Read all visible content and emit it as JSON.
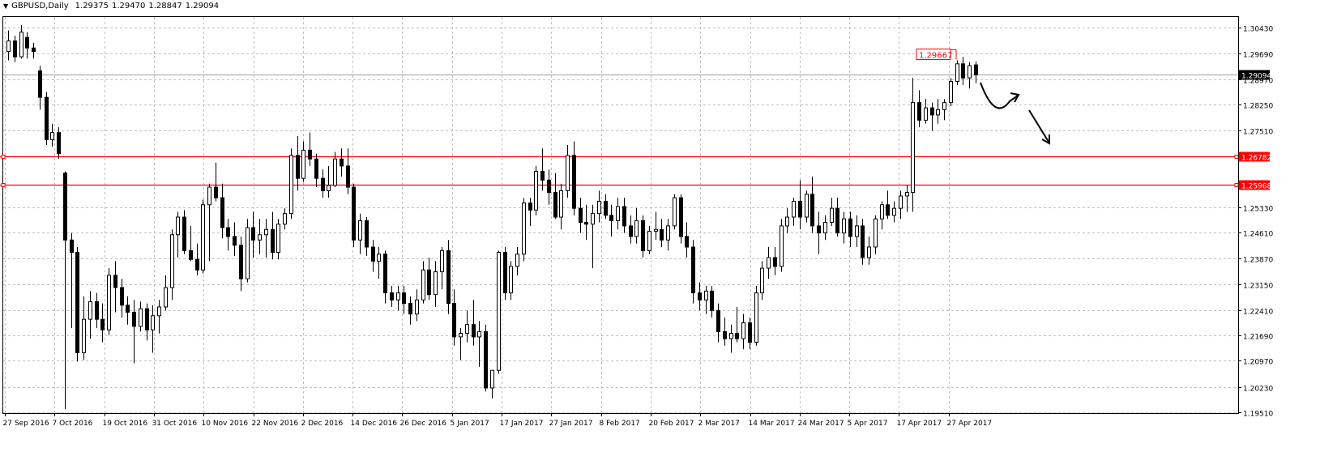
{
  "header": {
    "symbol": "GBPUSD,Daily",
    "open": "1.29375",
    "high": "1.29470",
    "low": "1.28847",
    "close": "1.29094"
  },
  "chart_data": {
    "type": "candlestick",
    "symbol": "GBPUSD",
    "timeframe": "Daily",
    "ylim": [
      1.1951,
      1.3043
    ],
    "y_ticks": [
      "1.30430",
      "1.29690",
      "1.28970",
      "1.28250",
      "1.27510",
      "1.26782",
      "1.25968",
      "1.25330",
      "1.24610",
      "1.23870",
      "1.23150",
      "1.22410",
      "1.21690",
      "1.20970",
      "1.20230",
      "1.19510"
    ],
    "x_ticks": [
      "27 Sep 2016",
      "7 Oct 2016",
      "19 Oct 2016",
      "31 Oct 2016",
      "10 Nov 2016",
      "22 Nov 2016",
      "2 Dec 2016",
      "14 Dec 2016",
      "26 Dec 2016",
      "5 Jan 2017",
      "17 Jan 2017",
      "27 Jan 2017",
      "8 Feb 2017",
      "20 Feb 2017",
      "2 Mar 2017",
      "14 Mar 2017",
      "24 Mar 2017",
      "5 Apr 2017",
      "17 Apr 2017",
      "27 Apr 2017"
    ],
    "grid": true,
    "levels": [
      {
        "label": "1.26782",
        "value": 1.26782,
        "color": "#ff0000"
      },
      {
        "label": "1.25968",
        "value": 1.25968,
        "color": "#ff0000"
      }
    ],
    "current_price": {
      "label": "1.29094",
      "value": 1.29094
    },
    "annotation": {
      "label": "1.29667",
      "value": 1.29667,
      "color": "#ff0000"
    },
    "candles": [
      [
        1.2975,
        1.3035,
        1.295,
        1.3005
      ],
      [
        1.3005,
        1.302,
        1.2945,
        1.296
      ],
      [
        1.296,
        1.305,
        1.2955,
        1.303
      ],
      [
        1.3015,
        1.303,
        1.2955,
        1.2985
      ],
      [
        1.2985,
        1.3,
        1.2955,
        1.2975
      ],
      [
        1.292,
        1.2935,
        1.281,
        1.2845
      ],
      [
        1.2845,
        1.286,
        1.271,
        1.2725
      ],
      [
        1.2725,
        1.277,
        1.2705,
        1.2745
      ],
      [
        1.2745,
        1.276,
        1.267,
        1.2685
      ],
      [
        1.263,
        1.2635,
        1.196,
        1.244
      ],
      [
        1.244,
        1.246,
        1.219,
        1.2405
      ],
      [
        1.2405,
        1.242,
        1.2095,
        1.212
      ],
      [
        1.212,
        1.228,
        1.21,
        1.2215
      ],
      [
        1.2215,
        1.2295,
        1.216,
        1.2265
      ],
      [
        1.2265,
        1.229,
        1.219,
        1.2215
      ],
      [
        1.2215,
        1.226,
        1.215,
        1.2185
      ],
      [
        1.2185,
        1.236,
        1.217,
        1.234
      ],
      [
        1.234,
        1.238,
        1.2235,
        1.2305
      ],
      [
        1.2305,
        1.233,
        1.222,
        1.2255
      ],
      [
        1.2255,
        1.228,
        1.22,
        1.2235
      ],
      [
        1.2235,
        1.227,
        1.209,
        1.2195
      ],
      [
        1.2195,
        1.2265,
        1.218,
        1.2245
      ],
      [
        1.2245,
        1.226,
        1.2155,
        1.2185
      ],
      [
        1.2185,
        1.2255,
        1.212,
        1.2225
      ],
      [
        1.2225,
        1.227,
        1.2175,
        1.225
      ],
      [
        1.225,
        1.234,
        1.224,
        1.2305
      ],
      [
        1.2305,
        1.247,
        1.227,
        1.2455
      ],
      [
        1.2455,
        1.252,
        1.239,
        1.2505
      ],
      [
        1.2505,
        1.2525,
        1.24,
        1.241
      ],
      [
        1.241,
        1.248,
        1.238,
        1.2385
      ],
      [
        1.2385,
        1.243,
        1.234,
        1.2355
      ],
      [
        1.2355,
        1.2555,
        1.2345,
        1.254
      ],
      [
        1.254,
        1.26,
        1.238,
        1.259
      ],
      [
        1.259,
        1.266,
        1.255,
        1.256
      ],
      [
        1.256,
        1.26,
        1.2445,
        1.2475
      ],
      [
        1.2475,
        1.25,
        1.241,
        1.245
      ],
      [
        1.245,
        1.249,
        1.2395,
        1.2425
      ],
      [
        1.2425,
        1.245,
        1.2295,
        1.233
      ],
      [
        1.233,
        1.25,
        1.232,
        1.2475
      ],
      [
        1.2475,
        1.252,
        1.239,
        1.244
      ],
      [
        1.244,
        1.25,
        1.24,
        1.2455
      ],
      [
        1.2455,
        1.25,
        1.239,
        1.247
      ],
      [
        1.247,
        1.252,
        1.2385,
        1.2405
      ],
      [
        1.2405,
        1.25,
        1.2385,
        1.2485
      ],
      [
        1.2485,
        1.253,
        1.247,
        1.2515
      ],
      [
        1.2515,
        1.27,
        1.25,
        1.268
      ],
      [
        1.268,
        1.2735,
        1.258,
        1.2615
      ],
      [
        1.2615,
        1.272,
        1.2605,
        1.2695
      ],
      [
        1.2695,
        1.2745,
        1.265,
        1.267
      ],
      [
        1.267,
        1.2685,
        1.259,
        1.2615
      ],
      [
        1.2615,
        1.264,
        1.256,
        1.258
      ],
      [
        1.258,
        1.265,
        1.256,
        1.2595
      ],
      [
        1.2595,
        1.269,
        1.259,
        1.267
      ],
      [
        1.267,
        1.27,
        1.262,
        1.265
      ],
      [
        1.265,
        1.27,
        1.257,
        1.259
      ],
      [
        1.259,
        1.26,
        1.242,
        1.244
      ],
      [
        1.244,
        1.2515,
        1.24,
        1.2495
      ],
      [
        1.2495,
        1.2505,
        1.2395,
        1.242
      ],
      [
        1.242,
        1.244,
        1.235,
        1.238
      ],
      [
        1.238,
        1.242,
        1.233,
        1.24
      ],
      [
        1.24,
        1.241,
        1.226,
        1.229
      ],
      [
        1.229,
        1.231,
        1.225,
        1.227
      ],
      [
        1.227,
        1.231,
        1.224,
        1.229
      ],
      [
        1.229,
        1.231,
        1.223,
        1.226
      ],
      [
        1.226,
        1.228,
        1.22,
        1.223
      ],
      [
        1.223,
        1.23,
        1.221,
        1.227
      ],
      [
        1.227,
        1.238,
        1.226,
        1.2355
      ],
      [
        1.2355,
        1.239,
        1.227,
        1.2285
      ],
      [
        1.2285,
        1.238,
        1.225,
        1.235
      ],
      [
        1.235,
        1.242,
        1.23,
        1.241
      ],
      [
        1.241,
        1.244,
        1.223,
        1.226
      ],
      [
        1.226,
        1.23,
        1.214,
        1.2165
      ],
      [
        1.2165,
        1.219,
        1.21,
        1.2175
      ],
      [
        1.2175,
        1.224,
        1.215,
        1.22
      ],
      [
        1.22,
        1.227,
        1.214,
        1.2165
      ],
      [
        1.2165,
        1.221,
        1.208,
        1.218
      ],
      [
        1.218,
        1.22,
        1.201,
        1.202
      ],
      [
        1.202,
        1.207,
        1.199,
        1.207
      ],
      [
        1.207,
        1.241,
        1.206,
        1.2405
      ],
      [
        1.2405,
        1.242,
        1.227,
        1.229
      ],
      [
        1.229,
        1.238,
        1.227,
        1.2365
      ],
      [
        1.2365,
        1.242,
        1.234,
        1.24
      ],
      [
        1.24,
        1.256,
        1.238,
        1.2545
      ],
      [
        1.2545,
        1.256,
        1.248,
        1.2525
      ],
      [
        1.2525,
        1.265,
        1.251,
        1.2635
      ],
      [
        1.2635,
        1.27,
        1.258,
        1.261
      ],
      [
        1.261,
        1.264,
        1.254,
        1.2575
      ],
      [
        1.2575,
        1.263,
        1.25,
        1.2505
      ],
      [
        1.2505,
        1.26,
        1.247,
        1.258
      ],
      [
        1.258,
        1.271,
        1.256,
        1.268
      ],
      [
        1.268,
        1.272,
        1.251,
        1.253
      ],
      [
        1.253,
        1.256,
        1.246,
        1.249
      ],
      [
        1.249,
        1.254,
        1.244,
        1.2485
      ],
      [
        1.2485,
        1.254,
        1.236,
        1.2515
      ],
      [
        1.2515,
        1.258,
        1.249,
        1.255
      ],
      [
        1.255,
        1.257,
        1.25,
        1.251
      ],
      [
        1.251,
        1.254,
        1.245,
        1.2495
      ],
      [
        1.2495,
        1.256,
        1.247,
        1.2535
      ],
      [
        1.2535,
        1.256,
        1.246,
        1.248
      ],
      [
        1.248,
        1.251,
        1.243,
        1.245
      ],
      [
        1.245,
        1.253,
        1.243,
        1.2495
      ],
      [
        1.2495,
        1.251,
        1.239,
        1.241
      ],
      [
        1.241,
        1.248,
        1.24,
        1.2465
      ],
      [
        1.2465,
        1.252,
        1.244,
        1.247
      ],
      [
        1.247,
        1.25,
        1.242,
        1.244
      ],
      [
        1.244,
        1.25,
        1.241,
        1.248
      ],
      [
        1.248,
        1.257,
        1.247,
        1.256
      ],
      [
        1.256,
        1.257,
        1.243,
        1.245
      ],
      [
        1.245,
        1.249,
        1.239,
        1.242
      ],
      [
        1.242,
        1.244,
        1.226,
        1.229
      ],
      [
        1.229,
        1.232,
        1.224,
        1.227
      ],
      [
        1.227,
        1.231,
        1.223,
        1.2295
      ],
      [
        1.2295,
        1.231,
        1.222,
        1.224
      ],
      [
        1.224,
        1.226,
        1.215,
        1.218
      ],
      [
        1.218,
        1.222,
        1.214,
        1.216
      ],
      [
        1.216,
        1.22,
        1.212,
        1.2175
      ],
      [
        1.2175,
        1.225,
        1.215,
        1.216
      ],
      [
        1.216,
        1.223,
        1.213,
        1.2205
      ],
      [
        1.2205,
        1.222,
        1.213,
        1.215
      ],
      [
        1.215,
        1.231,
        1.214,
        1.229
      ],
      [
        1.229,
        1.238,
        1.227,
        1.236
      ],
      [
        1.236,
        1.242,
        1.233,
        1.239
      ],
      [
        1.239,
        1.242,
        1.234,
        1.2365
      ],
      [
        1.2365,
        1.25,
        1.235,
        1.248
      ],
      [
        1.248,
        1.253,
        1.246,
        1.2505
      ],
      [
        1.2505,
        1.256,
        1.248,
        1.255
      ],
      [
        1.255,
        1.261,
        1.247,
        1.2505
      ],
      [
        1.2505,
        1.258,
        1.249,
        1.257
      ],
      [
        1.257,
        1.262,
        1.246,
        1.248
      ],
      [
        1.248,
        1.252,
        1.24,
        1.246
      ],
      [
        1.246,
        1.251,
        1.244,
        1.249
      ],
      [
        1.249,
        1.256,
        1.248,
        1.253
      ],
      [
        1.253,
        1.256,
        1.245,
        1.246
      ],
      [
        1.246,
        1.252,
        1.243,
        1.25
      ],
      [
        1.25,
        1.252,
        1.242,
        1.245
      ],
      [
        1.245,
        1.251,
        1.242,
        1.248
      ],
      [
        1.248,
        1.25,
        1.237,
        1.239
      ],
      [
        1.239,
        1.245,
        1.237,
        1.242
      ],
      [
        1.242,
        1.251,
        1.24,
        1.25
      ],
      [
        1.25,
        1.255,
        1.247,
        1.254
      ],
      [
        1.254,
        1.258,
        1.25,
        1.251
      ],
      [
        1.251,
        1.255,
        1.249,
        1.253
      ],
      [
        1.253,
        1.258,
        1.25,
        1.2565
      ],
      [
        1.2565,
        1.2595,
        1.252,
        1.2575
      ],
      [
        1.2575,
        1.29,
        1.252,
        1.283
      ],
      [
        1.283,
        1.2865,
        1.276,
        1.278
      ],
      [
        1.278,
        1.284,
        1.277,
        1.2815
      ],
      [
        1.2815,
        1.283,
        1.275,
        1.2795
      ],
      [
        1.2795,
        1.284,
        1.277,
        1.281
      ],
      [
        1.281,
        1.284,
        1.278,
        1.283
      ],
      [
        1.283,
        1.29,
        1.282,
        1.289
      ],
      [
        1.289,
        1.295,
        1.288,
        1.294
      ],
      [
        1.294,
        1.296,
        1.288,
        1.29
      ],
      [
        1.29,
        1.2945,
        1.287,
        1.2935
      ],
      [
        1.2937,
        1.2947,
        1.2885,
        1.2909
      ]
    ]
  }
}
